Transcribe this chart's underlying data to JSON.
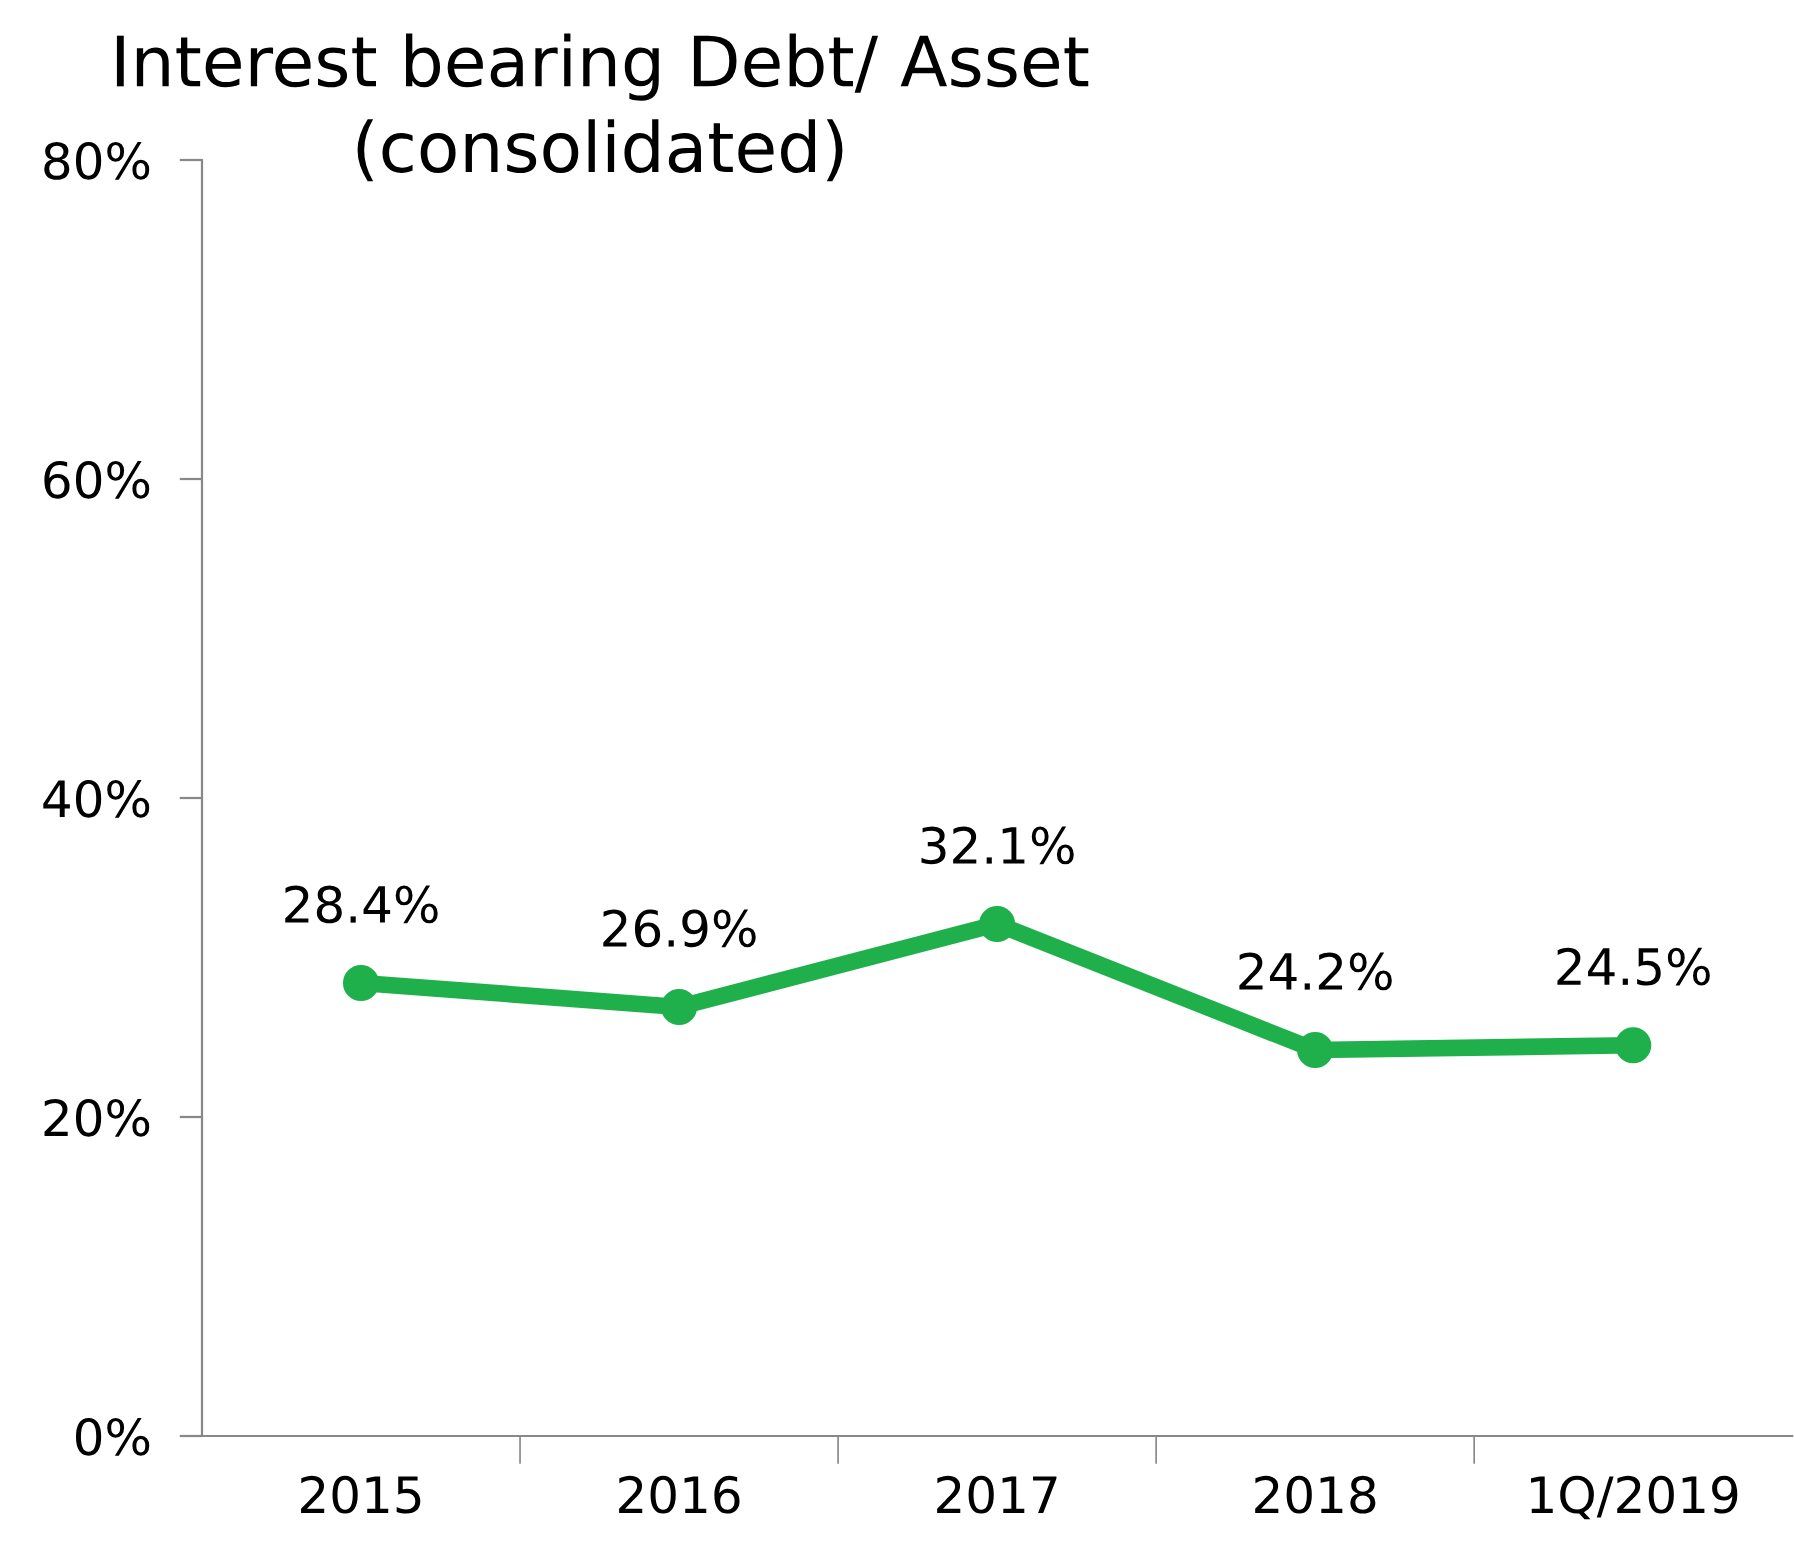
{
  "chart_data": {
    "type": "line",
    "title": "Interest bearing Debt/ Asset\n(consolidated)",
    "categories": [
      "2015",
      "2016",
      "2017",
      "2018",
      "1Q/2019"
    ],
    "series": [
      {
        "color": "#1fb04c",
        "values": [
          28.4,
          26.9,
          32.1,
          24.2,
          24.5
        ],
        "value_labels": [
          "28.4%",
          "26.9%",
          "32.1%",
          "24.2%",
          "24.5%"
        ]
      }
    ],
    "ylim": [
      0,
      80
    ],
    "yticks": [
      {
        "value": 0,
        "label": "0%"
      },
      {
        "value": 20,
        "label": "20%"
      },
      {
        "value": 40,
        "label": "40%"
      },
      {
        "value": 60,
        "label": "60%"
      },
      {
        "value": 80,
        "label": "80%"
      }
    ],
    "marker": "circle",
    "line_style": "solid",
    "grid": false,
    "legend": false
  }
}
